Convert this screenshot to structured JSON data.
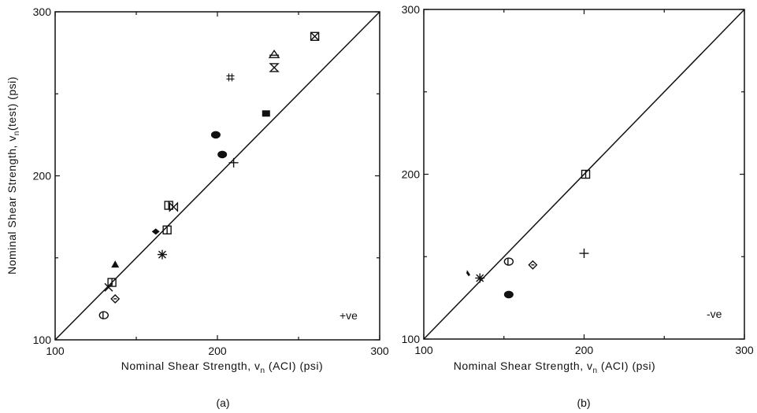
{
  "chart_data": [
    {
      "type": "scatter",
      "panel_label": "(a)",
      "annotation": "+ve",
      "xlabel": "Nominal Shear Strength, v_n (ACI) (psi)",
      "ylabel": "Nominal Shear Strength, v_n (test) (psi)",
      "xlim": [
        100,
        300
      ],
      "ylim": [
        100,
        300
      ],
      "x_ticks": [
        "100",
        "200",
        "300"
      ],
      "y_ticks": [
        "100",
        "200",
        "300"
      ],
      "grid": false,
      "reference_line": "y = x",
      "points": [
        {
          "x": 130,
          "y": 115,
          "marker": "circle-bar-open"
        },
        {
          "x": 137,
          "y": 125,
          "marker": "diamond-open"
        },
        {
          "x": 133,
          "y": 132,
          "marker": "x"
        },
        {
          "x": 135,
          "y": 135,
          "marker": "square-open"
        },
        {
          "x": 137,
          "y": 146,
          "marker": "triangle-filled"
        },
        {
          "x": 166,
          "y": 152,
          "marker": "asterisk"
        },
        {
          "x": 162,
          "y": 166,
          "marker": "diamond-filled"
        },
        {
          "x": 169,
          "y": 167,
          "marker": "square-open"
        },
        {
          "x": 170,
          "y": 182,
          "marker": "square-open"
        },
        {
          "x": 173,
          "y": 181,
          "marker": "bowtie"
        },
        {
          "x": 199,
          "y": 225,
          "marker": "circle-filled"
        },
        {
          "x": 203,
          "y": 213,
          "marker": "circle-filled"
        },
        {
          "x": 210,
          "y": 208,
          "marker": "plus"
        },
        {
          "x": 208,
          "y": 260,
          "marker": "hash"
        },
        {
          "x": 230,
          "y": 238,
          "marker": "square-filled"
        },
        {
          "x": 235,
          "y": 266,
          "marker": "hourglass"
        },
        {
          "x": 235,
          "y": 274,
          "marker": "triangle-bar-open"
        },
        {
          "x": 260,
          "y": 285,
          "marker": "square-x"
        }
      ]
    },
    {
      "type": "scatter",
      "panel_label": "(b)",
      "annotation": "-ve",
      "xlabel": "Nominal Shear Strength, v_n (ACI) (psi)",
      "ylabel": "",
      "xlim": [
        100,
        300
      ],
      "ylim": [
        100,
        300
      ],
      "x_ticks": [
        "100",
        "200",
        "300"
      ],
      "y_ticks": [
        "100",
        "200",
        "300"
      ],
      "grid": false,
      "reference_line": "y = x",
      "points": [
        {
          "x": 128,
          "y": 140,
          "marker": "tick-filled"
        },
        {
          "x": 135,
          "y": 137,
          "marker": "asterisk"
        },
        {
          "x": 153,
          "y": 127,
          "marker": "circle-filled"
        },
        {
          "x": 153,
          "y": 147,
          "marker": "circle-bar-open"
        },
        {
          "x": 168,
          "y": 145,
          "marker": "diamond-open"
        },
        {
          "x": 200,
          "y": 152,
          "marker": "plus"
        },
        {
          "x": 201,
          "y": 200,
          "marker": "square-open"
        }
      ]
    }
  ]
}
